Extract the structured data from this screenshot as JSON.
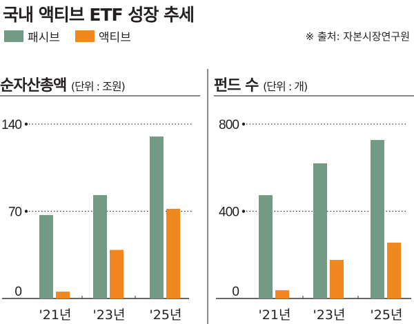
{
  "title": "국내 액티브 ETF 성장 추세",
  "source": "※ 출처: 자본시장연구원",
  "colors": {
    "passive": "#729a84",
    "active": "#f0871f"
  },
  "chart_data": [
    {
      "type": "bar",
      "title": "순자산총액",
      "unit": "(단위 : 조원)",
      "categories": [
        "'21년",
        "'23년",
        "'25년"
      ],
      "series": [
        {
          "name": "패시브",
          "values": [
            67,
            83,
            130
          ]
        },
        {
          "name": "액티브",
          "values": [
            5.5,
            39,
            72
          ]
        }
      ],
      "ylim": [
        0,
        140
      ],
      "yticks": [
        0,
        70,
        140
      ],
      "grid": true,
      "legend": "top-left"
    },
    {
      "type": "bar",
      "title": "펀드 수",
      "unit": "(단위 : 개)",
      "categories": [
        "'21년",
        "'23년",
        "'25년"
      ],
      "series": [
        {
          "name": "패시브",
          "values": [
            474,
            620,
            727
          ]
        },
        {
          "name": "액티브",
          "values": [
            38,
            177,
            256
          ]
        }
      ],
      "ylim": [
        0,
        800
      ],
      "yticks": [
        0,
        400,
        800
      ],
      "grid": true,
      "legend": "top-left"
    }
  ]
}
